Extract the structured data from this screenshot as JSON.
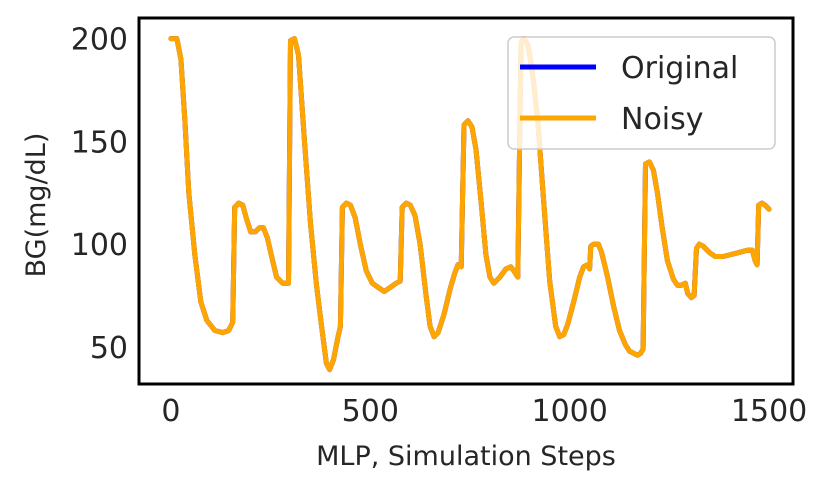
{
  "chart_data": {
    "type": "line",
    "xlabel": "MLP, Simulation Steps",
    "ylabel": "BG(mg/dL)",
    "xlim": [
      -80,
      1560
    ],
    "ylim": [
      32,
      210
    ],
    "x_ticks": [
      0,
      500,
      1000,
      1500
    ],
    "x_tick_labels": [
      "0",
      "500",
      "1000",
      "1500"
    ],
    "y_ticks": [
      50,
      100,
      150,
      200
    ],
    "y_tick_labels": [
      "50",
      "100",
      "150",
      "200"
    ],
    "grid": false,
    "legend_position": "top-right",
    "colors": {
      "original": "#0000ff",
      "noisy": "#ffa500",
      "frame": "#000000"
    },
    "series": [
      {
        "name": "Original",
        "points": [
          [
            0,
            200
          ],
          [
            15,
            200
          ],
          [
            25,
            190
          ],
          [
            35,
            160
          ],
          [
            45,
            125
          ],
          [
            60,
            95
          ],
          [
            75,
            72
          ],
          [
            90,
            63
          ],
          [
            110,
            58
          ],
          [
            130,
            57
          ],
          [
            145,
            58
          ],
          [
            155,
            62
          ],
          [
            160,
            118
          ],
          [
            170,
            120
          ],
          [
            180,
            119
          ],
          [
            190,
            112
          ],
          [
            200,
            106
          ],
          [
            212,
            106
          ],
          [
            222,
            108
          ],
          [
            232,
            108
          ],
          [
            242,
            103
          ],
          [
            255,
            92
          ],
          [
            265,
            84
          ],
          [
            280,
            81
          ],
          [
            295,
            81
          ],
          [
            300,
            199
          ],
          [
            310,
            200
          ],
          [
            320,
            192
          ],
          [
            335,
            150
          ],
          [
            350,
            110
          ],
          [
            365,
            80
          ],
          [
            378,
            60
          ],
          [
            390,
            42
          ],
          [
            398,
            39
          ],
          [
            408,
            44
          ],
          [
            418,
            54
          ],
          [
            425,
            60
          ],
          [
            430,
            118
          ],
          [
            440,
            120
          ],
          [
            450,
            119
          ],
          [
            462,
            113
          ],
          [
            475,
            100
          ],
          [
            490,
            87
          ],
          [
            505,
            81
          ],
          [
            520,
            79
          ],
          [
            535,
            77
          ],
          [
            550,
            79
          ],
          [
            565,
            81
          ],
          [
            575,
            82
          ],
          [
            580,
            118
          ],
          [
            590,
            120
          ],
          [
            600,
            119
          ],
          [
            612,
            114
          ],
          [
            625,
            100
          ],
          [
            640,
            75
          ],
          [
            650,
            60
          ],
          [
            660,
            55
          ],
          [
            670,
            57
          ],
          [
            685,
            66
          ],
          [
            700,
            78
          ],
          [
            712,
            86
          ],
          [
            720,
            90
          ],
          [
            728,
            89
          ],
          [
            735,
            158
          ],
          [
            745,
            160
          ],
          [
            755,
            157
          ],
          [
            765,
            146
          ],
          [
            778,
            120
          ],
          [
            790,
            95
          ],
          [
            800,
            84
          ],
          [
            810,
            81
          ],
          [
            825,
            84
          ],
          [
            840,
            88
          ],
          [
            852,
            89
          ],
          [
            860,
            87
          ],
          [
            870,
            84
          ],
          [
            878,
            198
          ],
          [
            885,
            200
          ],
          [
            895,
            197
          ],
          [
            905,
            186
          ],
          [
            920,
            160
          ],
          [
            935,
            120
          ],
          [
            950,
            82
          ],
          [
            965,
            60
          ],
          [
            975,
            55
          ],
          [
            985,
            56
          ],
          [
            995,
            61
          ],
          [
            1010,
            72
          ],
          [
            1025,
            84
          ],
          [
            1035,
            89
          ],
          [
            1045,
            90
          ],
          [
            1050,
            88
          ],
          [
            1053,
            99
          ],
          [
            1060,
            100
          ],
          [
            1072,
            100
          ],
          [
            1080,
            96
          ],
          [
            1095,
            84
          ],
          [
            1110,
            70
          ],
          [
            1125,
            58
          ],
          [
            1140,
            51
          ],
          [
            1150,
            48
          ],
          [
            1160,
            47
          ],
          [
            1170,
            46
          ],
          [
            1178,
            47
          ],
          [
            1184,
            49
          ],
          [
            1190,
            139
          ],
          [
            1200,
            140
          ],
          [
            1210,
            136
          ],
          [
            1220,
            125
          ],
          [
            1232,
            108
          ],
          [
            1245,
            92
          ],
          [
            1260,
            83
          ],
          [
            1270,
            80
          ],
          [
            1280,
            80
          ],
          [
            1290,
            81
          ],
          [
            1296,
            76
          ],
          [
            1305,
            74
          ],
          [
            1312,
            75
          ],
          [
            1318,
            98
          ],
          [
            1325,
            100
          ],
          [
            1335,
            99
          ],
          [
            1350,
            96
          ],
          [
            1365,
            94
          ],
          [
            1385,
            94
          ],
          [
            1405,
            95
          ],
          [
            1425,
            96
          ],
          [
            1445,
            97
          ],
          [
            1458,
            97
          ],
          [
            1465,
            92
          ],
          [
            1470,
            90
          ],
          [
            1474,
            119
          ],
          [
            1482,
            120
          ],
          [
            1490,
            119
          ],
          [
            1500,
            117
          ]
        ]
      },
      {
        "name": "Noisy",
        "points": [
          [
            0,
            200
          ],
          [
            15,
            200
          ],
          [
            25,
            190
          ],
          [
            35,
            160
          ],
          [
            45,
            125
          ],
          [
            60,
            95
          ],
          [
            75,
            72
          ],
          [
            90,
            63
          ],
          [
            110,
            58
          ],
          [
            130,
            57
          ],
          [
            145,
            58
          ],
          [
            155,
            62
          ],
          [
            160,
            118
          ],
          [
            170,
            120
          ],
          [
            180,
            119
          ],
          [
            190,
            112
          ],
          [
            200,
            106
          ],
          [
            212,
            106
          ],
          [
            222,
            108
          ],
          [
            232,
            108
          ],
          [
            242,
            103
          ],
          [
            255,
            92
          ],
          [
            265,
            84
          ],
          [
            280,
            81
          ],
          [
            295,
            81
          ],
          [
            300,
            199
          ],
          [
            310,
            200
          ],
          [
            320,
            192
          ],
          [
            335,
            150
          ],
          [
            350,
            110
          ],
          [
            365,
            80
          ],
          [
            378,
            60
          ],
          [
            390,
            42
          ],
          [
            398,
            39
          ],
          [
            408,
            44
          ],
          [
            418,
            54
          ],
          [
            425,
            60
          ],
          [
            430,
            118
          ],
          [
            440,
            120
          ],
          [
            450,
            119
          ],
          [
            462,
            113
          ],
          [
            475,
            100
          ],
          [
            490,
            87
          ],
          [
            505,
            81
          ],
          [
            520,
            79
          ],
          [
            535,
            77
          ],
          [
            550,
            79
          ],
          [
            565,
            81
          ],
          [
            575,
            82
          ],
          [
            580,
            118
          ],
          [
            590,
            120
          ],
          [
            600,
            119
          ],
          [
            612,
            114
          ],
          [
            625,
            100
          ],
          [
            640,
            75
          ],
          [
            650,
            60
          ],
          [
            660,
            55
          ],
          [
            670,
            57
          ],
          [
            685,
            66
          ],
          [
            700,
            78
          ],
          [
            712,
            86
          ],
          [
            720,
            90
          ],
          [
            728,
            89
          ],
          [
            735,
            158
          ],
          [
            745,
            160
          ],
          [
            755,
            157
          ],
          [
            765,
            146
          ],
          [
            778,
            120
          ],
          [
            790,
            95
          ],
          [
            800,
            84
          ],
          [
            810,
            81
          ],
          [
            825,
            84
          ],
          [
            840,
            88
          ],
          [
            852,
            89
          ],
          [
            860,
            87
          ],
          [
            870,
            84
          ],
          [
            878,
            198
          ],
          [
            885,
            200
          ],
          [
            895,
            197
          ],
          [
            905,
            186
          ],
          [
            920,
            160
          ],
          [
            935,
            120
          ],
          [
            950,
            82
          ],
          [
            965,
            60
          ],
          [
            975,
            55
          ],
          [
            985,
            56
          ],
          [
            995,
            61
          ],
          [
            1010,
            72
          ],
          [
            1025,
            84
          ],
          [
            1035,
            89
          ],
          [
            1045,
            90
          ],
          [
            1050,
            88
          ],
          [
            1053,
            99
          ],
          [
            1060,
            100
          ],
          [
            1072,
            100
          ],
          [
            1080,
            96
          ],
          [
            1095,
            84
          ],
          [
            1110,
            70
          ],
          [
            1125,
            58
          ],
          [
            1140,
            51
          ],
          [
            1150,
            48
          ],
          [
            1160,
            47
          ],
          [
            1170,
            46
          ],
          [
            1178,
            47
          ],
          [
            1184,
            49
          ],
          [
            1190,
            139
          ],
          [
            1200,
            140
          ],
          [
            1210,
            136
          ],
          [
            1220,
            125
          ],
          [
            1232,
            108
          ],
          [
            1245,
            92
          ],
          [
            1260,
            83
          ],
          [
            1270,
            80
          ],
          [
            1280,
            80
          ],
          [
            1290,
            81
          ],
          [
            1296,
            76
          ],
          [
            1305,
            74
          ],
          [
            1312,
            75
          ],
          [
            1318,
            98
          ],
          [
            1325,
            100
          ],
          [
            1335,
            99
          ],
          [
            1350,
            96
          ],
          [
            1365,
            94
          ],
          [
            1385,
            94
          ],
          [
            1405,
            95
          ],
          [
            1425,
            96
          ],
          [
            1445,
            97
          ],
          [
            1458,
            97
          ],
          [
            1465,
            92
          ],
          [
            1470,
            90
          ],
          [
            1474,
            119
          ],
          [
            1482,
            120
          ],
          [
            1490,
            119
          ],
          [
            1500,
            117
          ]
        ]
      }
    ]
  }
}
